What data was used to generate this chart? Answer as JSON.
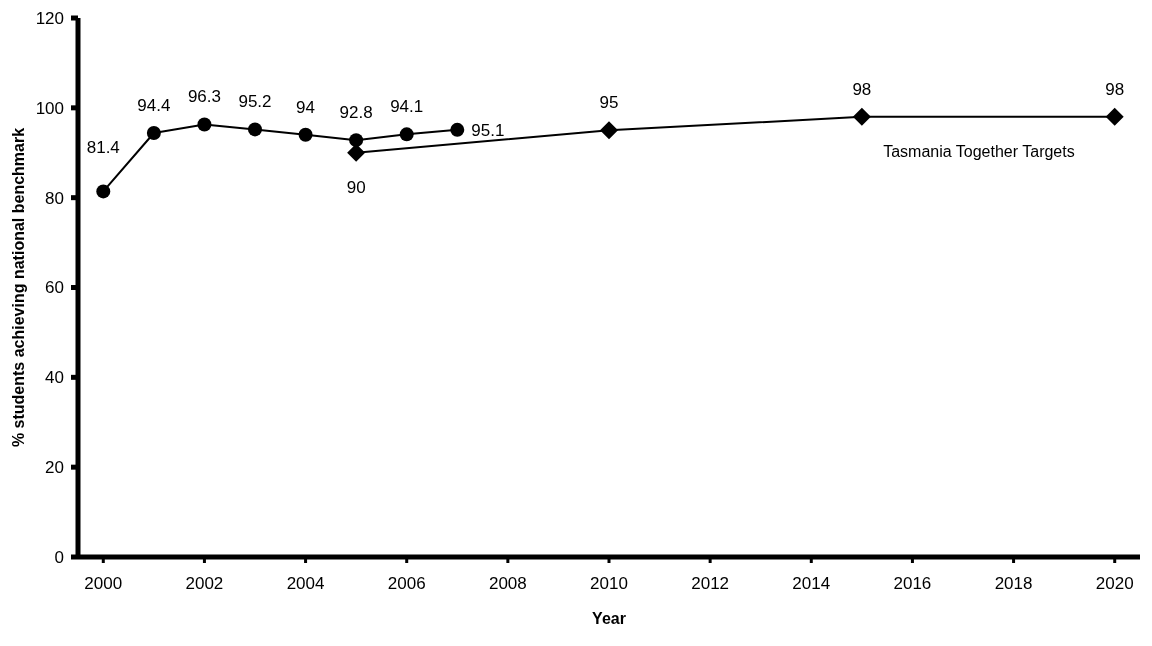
{
  "chart_data": {
    "type": "line",
    "xlabel": "Year",
    "ylabel": "% students achieving national benchmark",
    "xlim": [
      1999.5,
      2020.5
    ],
    "xticks": [
      2000,
      2002,
      2004,
      2006,
      2008,
      2010,
      2012,
      2014,
      2016,
      2018,
      2020
    ],
    "ylim": [
      0,
      120
    ],
    "yticks": [
      0,
      20,
      40,
      60,
      80,
      100,
      120
    ],
    "grid": false,
    "legend": false,
    "data_labels": true,
    "line_style": "solid",
    "series": [
      {
        "color": "#000000",
        "marker": "circle",
        "x": [
          2000,
          2001,
          2002,
          2003,
          2004,
          2005,
          2006,
          2007
        ],
        "values": [
          81.4,
          94.4,
          96.3,
          95.2,
          94,
          92.8,
          94.1,
          95.1
        ]
      },
      {
        "name": "Tasmania Together Targets",
        "color": "#000000",
        "marker": "diamond",
        "x": [
          2005,
          2010,
          2015,
          2020
        ],
        "values": [
          90,
          95,
          98,
          98
        ]
      }
    ]
  }
}
